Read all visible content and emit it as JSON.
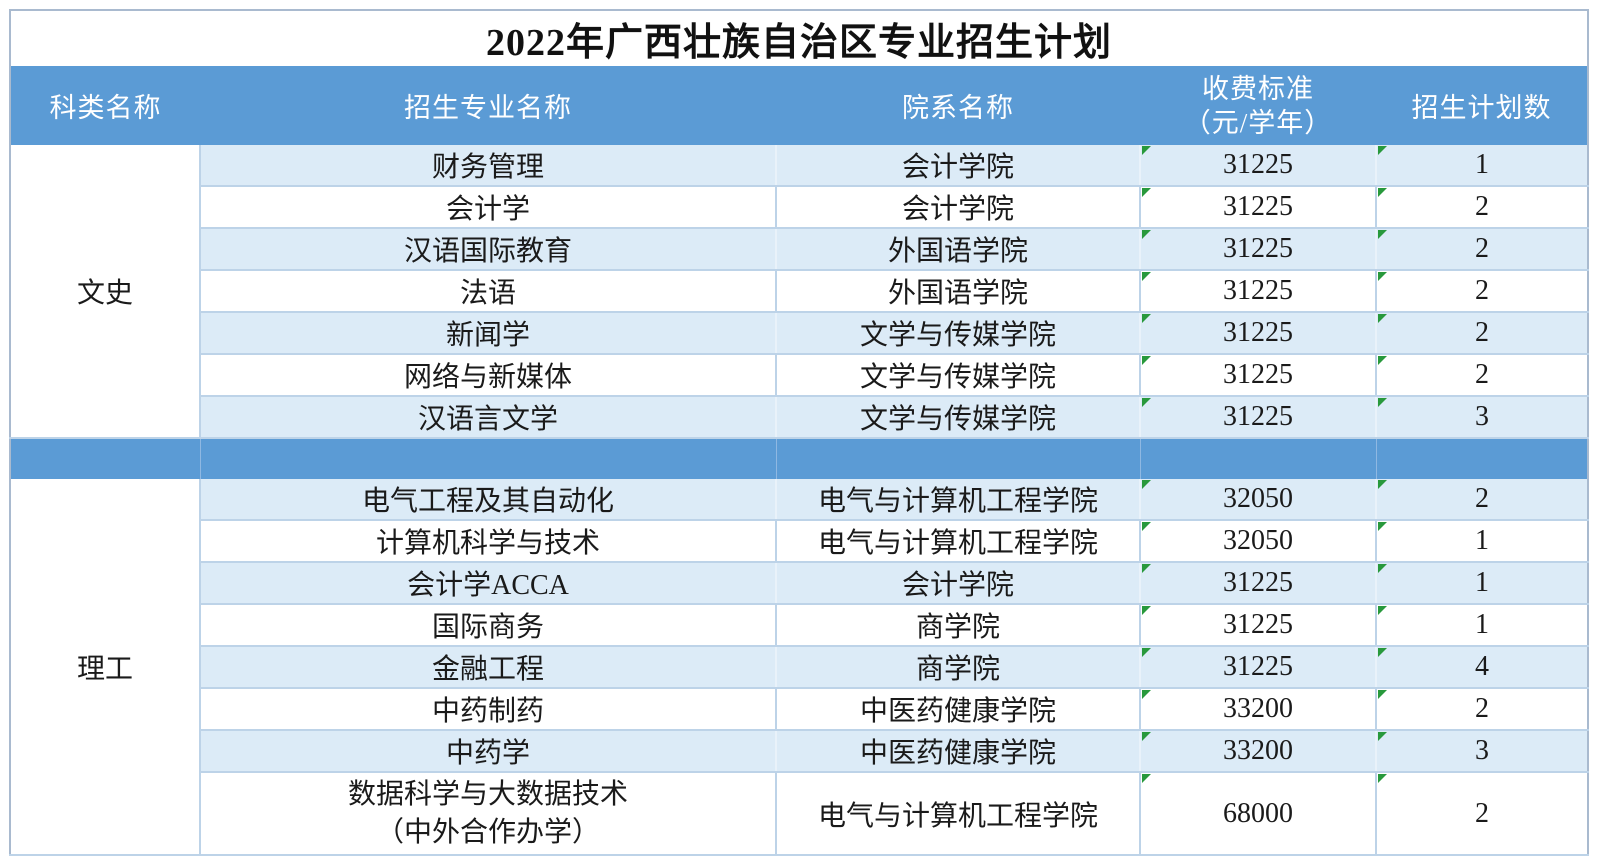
{
  "title": "2022年广西壮族自治区专业招生计划",
  "header": {
    "col_category": "科类名称",
    "col_major": "招生专业名称",
    "col_department": "院系名称",
    "col_fee_line1": "收费标准",
    "col_fee_line2": "（元/学年）",
    "col_plan": "招生计划数"
  },
  "sections": [
    {
      "category": "文史",
      "rows": [
        {
          "major": "财务管理",
          "department": "会计学院",
          "fee": "31225",
          "plan": "1"
        },
        {
          "major": "会计学",
          "department": "会计学院",
          "fee": "31225",
          "plan": "2"
        },
        {
          "major": "汉语国际教育",
          "department": "外国语学院",
          "fee": "31225",
          "plan": "2"
        },
        {
          "major": "法语",
          "department": "外国语学院",
          "fee": "31225",
          "plan": "2"
        },
        {
          "major": "新闻学",
          "department": "文学与传媒学院",
          "fee": "31225",
          "plan": "2"
        },
        {
          "major": "网络与新媒体",
          "department": "文学与传媒学院",
          "fee": "31225",
          "plan": "2"
        },
        {
          "major": "汉语言文学",
          "department": "文学与传媒学院",
          "fee": "31225",
          "plan": "3"
        }
      ]
    },
    {
      "category": "理工",
      "rows": [
        {
          "major": "电气工程及其自动化",
          "department": "电气与计算机工程学院",
          "fee": "32050",
          "plan": "2"
        },
        {
          "major": "计算机科学与技术",
          "department": "电气与计算机工程学院",
          "fee": "32050",
          "plan": "1"
        },
        {
          "major": "会计学ACCA",
          "department": "会计学院",
          "fee": "31225",
          "plan": "1"
        },
        {
          "major": "国际商务",
          "department": "商学院",
          "fee": "31225",
          "plan": "1"
        },
        {
          "major": "金融工程",
          "department": "商学院",
          "fee": "31225",
          "plan": "4"
        },
        {
          "major": "中药制药",
          "department": "中医药健康学院",
          "fee": "33200",
          "plan": "2"
        },
        {
          "major": "中药学",
          "department": "中医药健康学院",
          "fee": "33200",
          "plan": "3"
        },
        {
          "major": "数据科学与大数据技术",
          "major_line2": "（中外合作办学）",
          "department": "电气与计算机工程学院",
          "fee": "68000",
          "plan": "2"
        }
      ]
    }
  ],
  "colors": {
    "header_bg": "#5b9bd5",
    "stripe_bg": "#dcebf7",
    "grid_border": "#bdd3e8",
    "outer_border": "#a9bacf",
    "error_indicator_green": "#28993c"
  }
}
